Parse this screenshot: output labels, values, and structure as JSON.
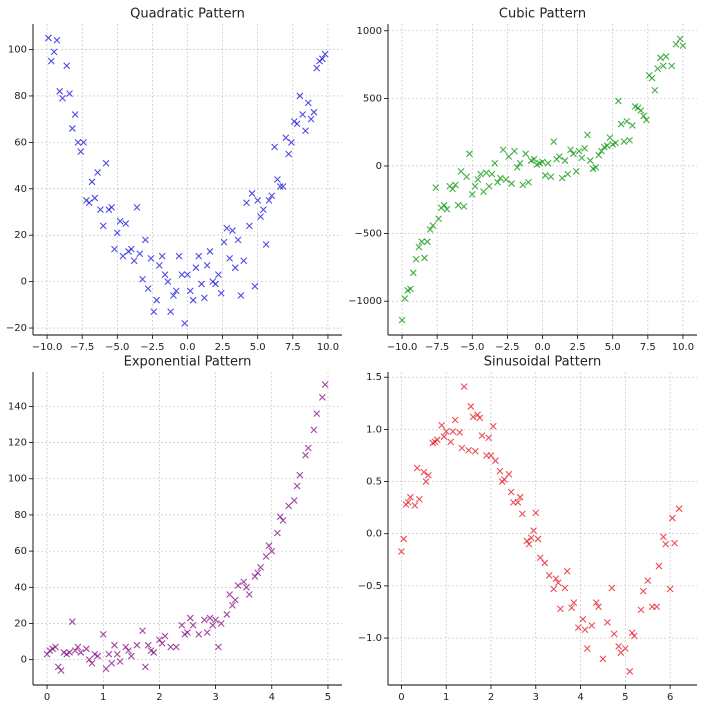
{
  "chart_data": [
    {
      "type": "scatter",
      "title": "Quadratic Pattern",
      "color": "#1f1fe0",
      "grid": true,
      "marker": "x",
      "xlim": [
        -11,
        11
      ],
      "ylim": [
        -23,
        111
      ],
      "xticks": [
        {
          "value": -10,
          "label": "−10.0"
        },
        {
          "value": -7.5,
          "label": "−7.5"
        },
        {
          "value": -5,
          "label": "−5.0"
        },
        {
          "value": -2.5,
          "label": "−2.5"
        },
        {
          "value": 0,
          "label": "0.0"
        },
        2.5,
        {
          "value": 5,
          "label": "5.0"
        },
        7.5,
        {
          "value": 10,
          "label": "10.0"
        }
      ],
      "yticks": [
        {
          "value": -20,
          "label": "−20"
        },
        0,
        20,
        40,
        60,
        80,
        100
      ],
      "x": [
        -9.9,
        -9.7,
        -9.5,
        -9.3,
        -9.1,
        -8.9,
        -8.6,
        -8.4,
        -8.2,
        -8.0,
        -7.8,
        -7.6,
        -7.4,
        -7.2,
        -7.0,
        -6.8,
        -6.6,
        -6.4,
        -6.2,
        -6.0,
        -5.8,
        -5.6,
        -5.4,
        -5.2,
        -5.0,
        -4.8,
        -4.6,
        -4.4,
        -4.2,
        -4.0,
        -3.8,
        -3.6,
        -3.4,
        -3.2,
        -3.0,
        -2.8,
        -2.6,
        -2.4,
        -2.2,
        -2.0,
        -1.8,
        -1.6,
        -1.4,
        -1.2,
        -1.0,
        -0.8,
        -0.6,
        -0.4,
        -0.2,
        0.0,
        0.2,
        0.4,
        0.6,
        0.8,
        1.0,
        1.2,
        1.4,
        1.6,
        1.8,
        2.0,
        2.2,
        2.4,
        2.6,
        2.8,
        3.0,
        3.2,
        3.4,
        3.6,
        3.8,
        4.0,
        4.2,
        4.4,
        4.6,
        4.8,
        5.0,
        5.2,
        5.4,
        5.6,
        5.8,
        6.0,
        6.2,
        6.4,
        6.6,
        6.8,
        7.0,
        7.2,
        7.4,
        7.6,
        7.8,
        8.0,
        8.2,
        8.4,
        8.6,
        8.8,
        9.0,
        9.2,
        9.4,
        9.6,
        9.8
      ],
      "values": [
        105,
        95,
        99,
        104,
        82,
        79,
        93,
        81,
        66,
        72,
        60,
        56,
        60,
        35,
        34,
        43,
        36,
        47,
        31,
        24,
        51,
        31,
        32,
        14,
        21,
        26,
        11,
        25,
        13,
        14,
        9,
        32,
        12,
        1,
        18,
        -3,
        10,
        -13,
        -8,
        7,
        11,
        3,
        0,
        -13,
        -6,
        -4,
        11,
        3,
        -18,
        3,
        -4,
        -8,
        6,
        11,
        -1,
        -7,
        7,
        13,
        0,
        -1,
        3,
        -5,
        17,
        23,
        10,
        22,
        6,
        18,
        -6,
        9,
        34,
        24,
        38,
        -2,
        35,
        28,
        31,
        16,
        35,
        37,
        58,
        44,
        41,
        41,
        62,
        55,
        60,
        69,
        68,
        80,
        72,
        65,
        77,
        70,
        73,
        92,
        95,
        96,
        98
      ]
    },
    {
      "type": "scatter",
      "title": "Cubic Pattern",
      "color": "#119911",
      "grid": true,
      "marker": "x",
      "xlim": [
        -11,
        11
      ],
      "ylim": [
        -1250,
        1050
      ],
      "xticks": [
        {
          "value": -10,
          "label": "−10.0"
        },
        {
          "value": -7.5,
          "label": "−7.5"
        },
        {
          "value": -5,
          "label": "−5.0"
        },
        {
          "value": -2.5,
          "label": "−2.5"
        },
        {
          "value": 0,
          "label": "0.0"
        },
        2.5,
        {
          "value": 5,
          "label": "5.0"
        },
        7.5,
        {
          "value": 10,
          "label": "10.0"
        }
      ],
      "yticks": [
        {
          "value": -1000,
          "label": "−1000"
        },
        {
          "value": -500,
          "label": "−500"
        },
        0,
        500,
        1000
      ],
      "x": [
        -10,
        -9.8,
        -9.6,
        -9.4,
        -9.2,
        -9.0,
        -8.8,
        -8.6,
        -8.4,
        -8.2,
        -8.0,
        -7.8,
        -7.6,
        -7.4,
        -7.2,
        -7.0,
        -6.8,
        -6.6,
        -6.4,
        -6.2,
        -6.0,
        -5.8,
        -5.6,
        -5.4,
        -5.2,
        -5.0,
        -4.8,
        -4.6,
        -4.4,
        -4.2,
        -4.0,
        -3.8,
        -3.6,
        -3.4,
        -3.2,
        -3.0,
        -2.8,
        -2.6,
        -2.4,
        -2.2,
        -2.0,
        -1.8,
        -1.6,
        -1.4,
        -1.2,
        -1.0,
        -0.8,
        -0.6,
        -0.4,
        -0.2,
        0.0,
        0.2,
        0.4,
        0.6,
        0.8,
        1.0,
        1.2,
        1.4,
        1.6,
        1.8,
        2.0,
        2.2,
        2.4,
        2.6,
        2.8,
        3.0,
        3.2,
        3.4,
        3.6,
        3.8,
        4.0,
        4.2,
        4.4,
        4.6,
        4.8,
        5.0,
        5.2,
        5.4,
        5.6,
        5.8,
        6.0,
        6.2,
        6.4,
        6.6,
        6.8,
        7.0,
        7.2,
        7.4,
        7.6,
        7.8,
        8.0,
        8.2,
        8.4,
        8.6,
        8.8,
        9.2,
        9.5,
        9.8,
        10
      ],
      "values": [
        -1140,
        -980,
        -920,
        -910,
        -790,
        -690,
        -600,
        -560,
        -680,
        -560,
        -470,
        -440,
        -160,
        -390,
        -310,
        -290,
        -320,
        -150,
        -170,
        -140,
        -290,
        -40,
        -300,
        -80,
        90,
        -210,
        -150,
        -100,
        -60,
        -190,
        -50,
        -150,
        -60,
        20,
        -120,
        -90,
        120,
        -100,
        70,
        -130,
        110,
        -10,
        20,
        -140,
        90,
        -120,
        40,
        50,
        10,
        20,
        30,
        -70,
        20,
        -80,
        180,
        50,
        70,
        -90,
        40,
        -60,
        120,
        90,
        -40,
        110,
        60,
        130,
        230,
        40,
        -20,
        -10,
        80,
        110,
        140,
        150,
        210,
        160,
        170,
        480,
        310,
        180,
        330,
        190,
        300,
        440,
        430,
        410,
        370,
        340,
        670,
        650,
        560,
        720,
        800,
        740,
        810,
        740,
        900,
        940,
        890
      ]
    },
    {
      "type": "scatter",
      "title": "Exponential Pattern",
      "color": "#8a168a",
      "grid": true,
      "marker": "x",
      "xlim": [
        -0.25,
        5.25
      ],
      "ylim": [
        -14,
        159
      ],
      "xticks": [
        0,
        1,
        2,
        3,
        4,
        5
      ],
      "yticks": [
        0,
        20,
        40,
        60,
        80,
        100,
        120,
        140
      ],
      "x": [
        0,
        0.05,
        0.1,
        0.15,
        0.2,
        0.25,
        0.3,
        0.35,
        0.4,
        0.45,
        0.5,
        0.55,
        0.6,
        0.7,
        0.75,
        0.8,
        0.85,
        0.9,
        1.0,
        1.05,
        1.1,
        1.15,
        1.2,
        1.25,
        1.3,
        1.4,
        1.45,
        1.5,
        1.6,
        1.7,
        1.75,
        1.8,
        1.85,
        1.9,
        2.0,
        2.05,
        2.1,
        2.2,
        2.3,
        2.4,
        2.45,
        2.5,
        2.55,
        2.6,
        2.7,
        2.8,
        2.85,
        2.9,
        2.95,
        3.0,
        3.05,
        3.1,
        3.2,
        3.25,
        3.3,
        3.35,
        3.4,
        3.5,
        3.55,
        3.6,
        3.7,
        3.75,
        3.8,
        3.9,
        3.95,
        4.0,
        4.1,
        4.15,
        4.2,
        4.3,
        4.4,
        4.45,
        4.5,
        4.6,
        4.65,
        4.75,
        4.8,
        4.9,
        4.95
      ],
      "values": [
        3,
        5,
        6,
        7,
        -4,
        -6,
        4,
        3,
        4,
        21,
        5,
        7,
        4,
        6,
        0,
        -2,
        3,
        2,
        14,
        -5,
        3,
        -2,
        8,
        3,
        -1,
        7,
        5,
        2,
        8,
        16,
        -4,
        8,
        5,
        4,
        11,
        9,
        13,
        7,
        7,
        19,
        14,
        15,
        23,
        19,
        14,
        22,
        15,
        23,
        19,
        22,
        7,
        20,
        25,
        36,
        30,
        33,
        41,
        43,
        40,
        36,
        46,
        48,
        51,
        57,
        63,
        60,
        70,
        79,
        77,
        85,
        88,
        96,
        102,
        113,
        117,
        127,
        136,
        145,
        152
      ]
    },
    {
      "type": "scatter",
      "title": "Sinusoidal Pattern",
      "color": "#e8202a",
      "grid": true,
      "marker": "x",
      "xlim": [
        -0.3,
        6.6
      ],
      "ylim": [
        -1.45,
        1.55
      ],
      "xticks": [
        0,
        1,
        2,
        3,
        4,
        5,
        6
      ],
      "yticks": [
        {
          "value": -1,
          "label": "−1.0"
        },
        {
          "value": -0.5,
          "label": "−0.5"
        },
        {
          "value": 0,
          "label": "0.0"
        },
        0.5,
        {
          "value": 1,
          "label": "1.0"
        },
        1.5
      ],
      "x": [
        0,
        0.05,
        0.1,
        0.15,
        0.2,
        0.3,
        0.35,
        0.4,
        0.5,
        0.55,
        0.6,
        0.7,
        0.75,
        0.8,
        0.9,
        0.95,
        1.0,
        1.1,
        1.15,
        1.2,
        1.3,
        1.35,
        1.4,
        1.5,
        1.55,
        1.6,
        1.65,
        1.7,
        1.75,
        1.8,
        1.9,
        1.95,
        2.0,
        2.05,
        2.1,
        2.2,
        2.25,
        2.3,
        2.4,
        2.45,
        2.5,
        2.6,
        2.65,
        2.7,
        2.8,
        2.85,
        2.9,
        2.95,
        3.0,
        3.05,
        3.1,
        3.2,
        3.3,
        3.4,
        3.45,
        3.5,
        3.55,
        3.65,
        3.7,
        3.8,
        3.85,
        3.95,
        4.05,
        4.1,
        4.15,
        4.25,
        4.35,
        4.4,
        4.5,
        4.6,
        4.7,
        4.75,
        4.85,
        4.9,
        5.0,
        5.1,
        5.15,
        5.2,
        5.35,
        5.4,
        5.5,
        5.6,
        5.7,
        5.75,
        5.85,
        5.9,
        6.0,
        6.05,
        6.1,
        6.2
      ],
      "values": [
        -0.17,
        -0.05,
        0.28,
        0.3,
        0.35,
        0.27,
        0.63,
        0.33,
        0.59,
        0.5,
        0.56,
        0.87,
        0.88,
        0.9,
        1.04,
        0.93,
        0.98,
        0.88,
        0.98,
        1.09,
        0.97,
        0.82,
        1.41,
        0.8,
        1.22,
        1.12,
        0.79,
        1.14,
        1.11,
        0.94,
        0.75,
        0.92,
        0.75,
        1.03,
        0.7,
        0.6,
        0.5,
        0.52,
        0.57,
        0.4,
        0.3,
        0.3,
        0.35,
        0.19,
        -0.07,
        -0.1,
        -0.04,
        0.03,
        0.2,
        -0.05,
        -0.23,
        -0.28,
        -0.4,
        -0.53,
        -0.43,
        -0.47,
        -0.72,
        -0.52,
        -0.36,
        -0.71,
        -0.66,
        -0.9,
        -0.82,
        -0.92,
        -1.1,
        -0.88,
        -0.66,
        -0.7,
        -1.2,
        -0.85,
        -0.52,
        -0.96,
        -1.08,
        -1.14,
        -1.1,
        -1.32,
        -0.95,
        -0.98,
        -0.73,
        -0.55,
        -0.45,
        -0.7,
        -0.7,
        -0.31,
        -0.03,
        -0.1,
        -0.53,
        0.15,
        -0.09,
        0.24
      ]
    }
  ]
}
